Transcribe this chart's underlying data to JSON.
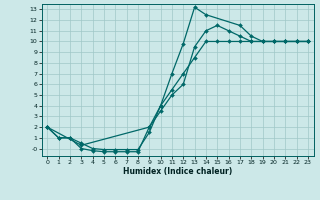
{
  "title": "",
  "xlabel": "Humidex (Indice chaleur)",
  "background_color": "#cce8e8",
  "grid_color": "#a0c8c8",
  "line_color": "#006868",
  "xlim": [
    -0.5,
    23.5
  ],
  "ylim": [
    -0.7,
    13.5
  ],
  "xticks": [
    0,
    1,
    2,
    3,
    4,
    5,
    6,
    7,
    8,
    9,
    10,
    11,
    12,
    13,
    14,
    15,
    16,
    17,
    18,
    19,
    20,
    21,
    22,
    23
  ],
  "yticks": [
    0,
    1,
    2,
    3,
    4,
    5,
    6,
    7,
    8,
    9,
    10,
    11,
    12,
    13
  ],
  "ytick_labels": [
    "-0",
    "1",
    "2",
    "3",
    "4",
    "5",
    "6",
    "7",
    "8",
    "9",
    "10",
    "11",
    "12",
    "13"
  ],
  "line1_x": [
    0,
    1,
    2,
    3,
    4,
    5,
    6,
    7,
    8,
    9,
    10,
    11,
    12,
    13,
    14,
    15,
    16,
    17,
    18,
    19,
    20,
    21,
    22,
    23
  ],
  "line1_y": [
    2,
    1,
    1,
    0.5,
    0.0,
    -0.1,
    -0.1,
    -0.1,
    -0.1,
    1.5,
    4.0,
    5.5,
    7.0,
    8.5,
    10,
    10,
    10,
    10,
    10,
    10,
    10,
    10,
    10,
    10
  ],
  "line2_x": [
    0,
    1,
    2,
    3,
    4,
    5,
    6,
    7,
    8,
    9,
    10,
    11,
    12,
    13,
    14,
    15,
    16,
    17,
    18,
    19,
    20,
    21,
    22,
    23
  ],
  "line2_y": [
    2,
    1,
    1,
    0.0,
    -0.2,
    -0.3,
    -0.3,
    -0.3,
    -0.3,
    2.0,
    3.5,
    5.0,
    6.0,
    9.5,
    11,
    11.5,
    11,
    10.5,
    10,
    10,
    10,
    10,
    10,
    10
  ],
  "line3_x": [
    0,
    3,
    9,
    10,
    11,
    12,
    13,
    14,
    17,
    18,
    19,
    20,
    21,
    22,
    23
  ],
  "line3_y": [
    2,
    0.3,
    2,
    4,
    7,
    9.8,
    13.2,
    12.5,
    11.5,
    10.5,
    10,
    10,
    10,
    10,
    10
  ],
  "marker": "D",
  "markersize": 2.0,
  "linewidth": 0.9
}
